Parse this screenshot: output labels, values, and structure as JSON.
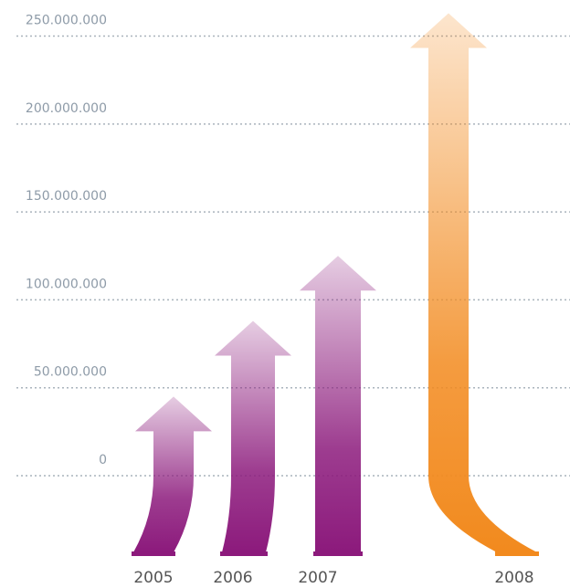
{
  "chart_data": {
    "type": "arrow-bar",
    "categories": [
      "2005",
      "2006",
      "2007",
      "2008"
    ],
    "values": [
      45000000,
      88000000,
      125000000,
      263000000
    ],
    "colors": [
      "#8c1a7c",
      "#8c1a7c",
      "#8c1a7c",
      "#f28a1e"
    ],
    "ylim": [
      0,
      270000000
    ],
    "yticks": [
      0,
      {
        "value": 50000000,
        "label": "50.000.000"
      },
      {
        "value": 100000000,
        "label": "100.000.000"
      },
      {
        "value": 150000000,
        "label": "150.000.000"
      },
      {
        "value": 200000000,
        "label": "200.000.000"
      },
      {
        "value": 250000000,
        "label": "250.000.000"
      }
    ],
    "grid": true
  }
}
